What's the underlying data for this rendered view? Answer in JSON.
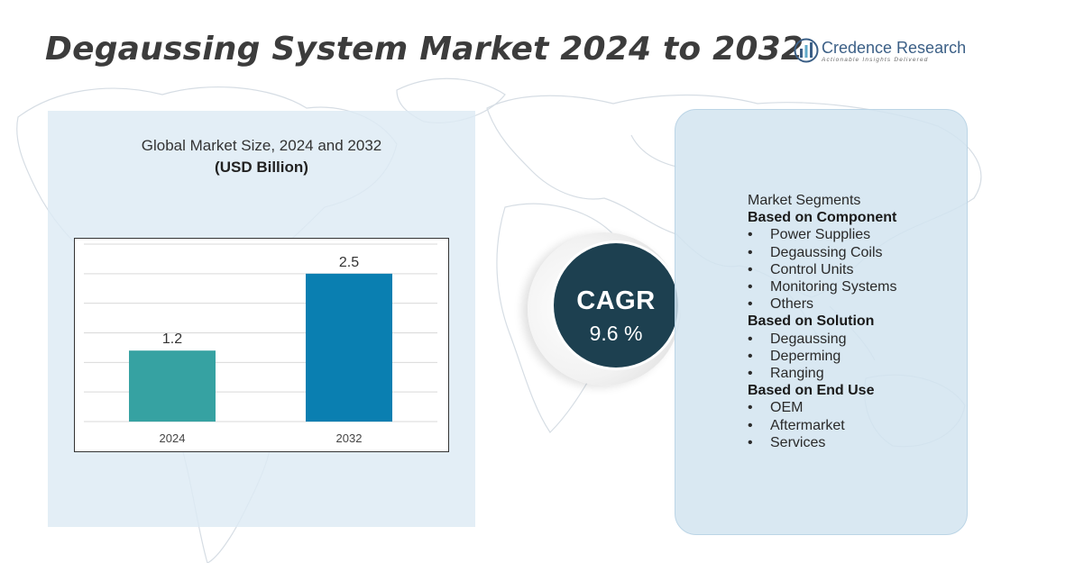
{
  "title": "Degaussing System Market 2024 to 2032",
  "brand": {
    "name": "Credence Research",
    "tagline": "Actionable Insights Delivered"
  },
  "chart_data": {
    "type": "bar",
    "title": "Global Market Size, 2024 and 2032",
    "subtitle": "(USD Billion)",
    "categories": [
      "2024",
      "2032"
    ],
    "values": [
      1.2,
      2.5
    ],
    "value_labels": [
      "1.2",
      "2.5"
    ],
    "colors": [
      "#36a2a2",
      "#0a7fb1"
    ],
    "ylim": [
      0,
      3.0
    ],
    "grid": true,
    "xlabel": "",
    "ylabel": ""
  },
  "cagr": {
    "label": "CAGR",
    "value": "9.6 %"
  },
  "segments": {
    "heading": "Market Segments",
    "groups": [
      {
        "title": "Based on Component",
        "items": [
          "Power Supplies",
          "Degaussing Coils",
          "Control Units",
          "Monitoring Systems",
          "Others"
        ]
      },
      {
        "title": "Based on Solution",
        "items": [
          "Degaussing",
          "Deperming",
          "Ranging"
        ]
      },
      {
        "title": "Based on End Use",
        "items": [
          "OEM",
          "Aftermarket",
          "Services"
        ]
      }
    ],
    "bullet": "•"
  },
  "colors": {
    "title_text": "#3c3c3c",
    "cagr_circle": "#1d4050",
    "left_panel": "#dde9f3",
    "right_panel": "#d2e4f0",
    "brand_blue": "#3b5f86"
  }
}
